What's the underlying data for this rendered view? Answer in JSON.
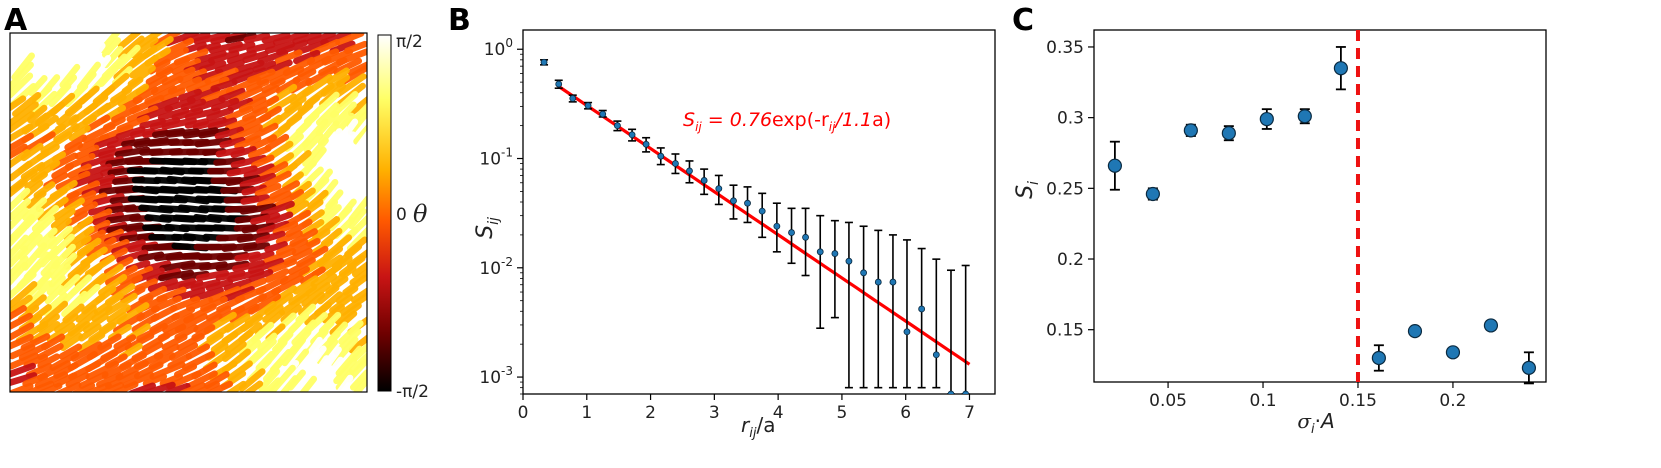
{
  "panels": {
    "a": {
      "letter": "A"
    },
    "b": {
      "letter": "B"
    },
    "c": {
      "letter": "C"
    }
  },
  "colorbar": {
    "ticks": [
      "π/2",
      "0",
      "-π/2"
    ],
    "label": "θ",
    "colors": [
      "#ffffff",
      "#ffff66",
      "#ffb000",
      "#ff5a00",
      "#c81414",
      "#6e0000",
      "#000000"
    ]
  },
  "chart_data": [
    {
      "type": "heatmap",
      "panel": "A",
      "description_colormap": "hot",
      "colorbar_ticks": [
        "π/2",
        "0",
        "-π/2"
      ],
      "colorbar_label": "θ"
    },
    {
      "type": "scatter",
      "panel": "B",
      "xlabel": {
        "main": "r",
        "sub": "ij",
        "rest": "/a"
      },
      "ylabel": {
        "main": "S",
        "sub": "ij"
      },
      "xlim": [
        0,
        7.4
      ],
      "ylim": [
        0.0007,
        1.5
      ],
      "yscale": "log",
      "xticks": [
        "0",
        "1",
        "2",
        "3",
        "4",
        "5",
        "6",
        "7"
      ],
      "yticks": [
        {
          "base": "10",
          "exp": "0"
        },
        {
          "base": "10",
          "exp": "-1"
        },
        {
          "base": "10",
          "exp": "-2"
        },
        {
          "base": "10",
          "exp": "-3"
        }
      ],
      "points": [
        {
          "x": 0.33,
          "y": 0.76,
          "lo": 0.72,
          "hi": 0.8
        },
        {
          "x": 0.56,
          "y": 0.48,
          "lo": 0.44,
          "hi": 0.52
        },
        {
          "x": 0.78,
          "y": 0.355,
          "lo": 0.33,
          "hi": 0.38
        },
        {
          "x": 1.02,
          "y": 0.305,
          "lo": 0.285,
          "hi": 0.325
        },
        {
          "x": 1.25,
          "y": 0.255,
          "lo": 0.24,
          "hi": 0.275
        },
        {
          "x": 1.48,
          "y": 0.2,
          "lo": 0.18,
          "hi": 0.22
        },
        {
          "x": 1.71,
          "y": 0.165,
          "lo": 0.145,
          "hi": 0.185
        },
        {
          "x": 1.93,
          "y": 0.135,
          "lo": 0.115,
          "hi": 0.155
        },
        {
          "x": 2.16,
          "y": 0.105,
          "lo": 0.088,
          "hi": 0.125
        },
        {
          "x": 2.39,
          "y": 0.09,
          "lo": 0.073,
          "hi": 0.11
        },
        {
          "x": 2.61,
          "y": 0.077,
          "lo": 0.06,
          "hi": 0.095
        },
        {
          "x": 2.84,
          "y": 0.063,
          "lo": 0.047,
          "hi": 0.08
        },
        {
          "x": 3.07,
          "y": 0.053,
          "lo": 0.038,
          "hi": 0.07
        },
        {
          "x": 3.3,
          "y": 0.041,
          "lo": 0.028,
          "hi": 0.057
        },
        {
          "x": 3.52,
          "y": 0.039,
          "lo": 0.026,
          "hi": 0.055
        },
        {
          "x": 3.75,
          "y": 0.033,
          "lo": 0.019,
          "hi": 0.048
        },
        {
          "x": 3.98,
          "y": 0.024,
          "lo": 0.014,
          "hi": 0.039
        },
        {
          "x": 4.21,
          "y": 0.021,
          "lo": 0.011,
          "hi": 0.035
        },
        {
          "x": 4.43,
          "y": 0.019,
          "lo": 0.0085,
          "hi": 0.035
        },
        {
          "x": 4.66,
          "y": 0.014,
          "lo": 0.0028,
          "hi": 0.03
        },
        {
          "x": 4.89,
          "y": 0.0135,
          "lo": 0.0035,
          "hi": 0.027
        },
        {
          "x": 5.11,
          "y": 0.0115,
          "lo": 0.0008,
          "hi": 0.026
        },
        {
          "x": 5.34,
          "y": 0.009,
          "lo": 0.0008,
          "hi": 0.024
        },
        {
          "x": 5.57,
          "y": 0.0074,
          "lo": 0.0008,
          "hi": 0.022
        },
        {
          "x": 5.8,
          "y": 0.0074,
          "lo": 0.0008,
          "hi": 0.02
        },
        {
          "x": 6.02,
          "y": 0.0026,
          "lo": 0.0008,
          "hi": 0.018
        },
        {
          "x": 6.25,
          "y": 0.0042,
          "lo": 0.0008,
          "hi": 0.015
        },
        {
          "x": 6.48,
          "y": 0.0016,
          "lo": 0.0008,
          "hi": 0.012
        },
        {
          "x": 6.71,
          "y": 0.0007,
          "lo": 0.0007,
          "hi": 0.0095
        },
        {
          "x": 6.94,
          "y": 0.0007,
          "lo": 0.0007,
          "hi": 0.0105
        }
      ],
      "fit": {
        "amplitude": 0.76,
        "length": 1.1,
        "x_range": [
          0.55,
          7.0
        ],
        "label_parts": [
          "S",
          "ij",
          " = 0.76",
          "exp(-r",
          "ij",
          "/1.1",
          "a)"
        ]
      },
      "fit_color": "#ff0000",
      "marker_color": "#1f77b4"
    },
    {
      "type": "scatter",
      "panel": "C",
      "xlabel": {
        "sigma": "σ",
        "sub": "i",
        "dot": "·",
        "A": "A"
      },
      "ylabel": {
        "main": "S",
        "sub": "i"
      },
      "xlim": [
        0.011,
        0.249
      ],
      "ylim": [
        0.113,
        0.362
      ],
      "xticks": [
        "0.05",
        "0.1",
        "0.15",
        "0.2"
      ],
      "yticks": [
        "0.15",
        "0.2",
        "0.25",
        "0.3",
        "0.35"
      ],
      "points": [
        {
          "x": 0.022,
          "y": 0.266,
          "err": 0.017
        },
        {
          "x": 0.042,
          "y": 0.246,
          "err": 0.004
        },
        {
          "x": 0.062,
          "y": 0.291,
          "err": 0.004
        },
        {
          "x": 0.082,
          "y": 0.289,
          "err": 0.005
        },
        {
          "x": 0.102,
          "y": 0.299,
          "err": 0.007
        },
        {
          "x": 0.122,
          "y": 0.301,
          "err": 0.005
        },
        {
          "x": 0.141,
          "y": 0.335,
          "err": 0.015
        },
        {
          "x": 0.161,
          "y": 0.13,
          "err": 0.009
        },
        {
          "x": 0.18,
          "y": 0.149,
          "err": 0.002
        },
        {
          "x": 0.2,
          "y": 0.134,
          "err": 0.002
        },
        {
          "x": 0.22,
          "y": 0.153,
          "err": 0.003
        },
        {
          "x": 0.24,
          "y": 0.123,
          "err": 0.011
        }
      ],
      "threshold_x": 0.15,
      "threshold_color": "#ee1111",
      "marker_color": "#1f77b4"
    }
  ]
}
